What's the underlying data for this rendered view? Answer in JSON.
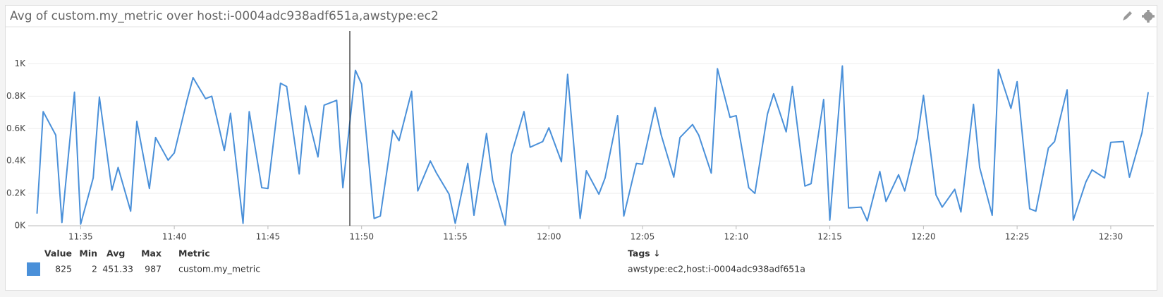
{
  "chart_data": {
    "type": "line",
    "title": "Avg of custom.my_metric over host:i-0004adc938adf651a,awstype:ec2",
    "x": [
      692.67,
      693,
      693.67,
      694,
      694.67,
      695,
      695.67,
      696,
      696.67,
      697,
      697.67,
      698,
      698.67,
      699,
      699.67,
      700,
      700.67,
      701,
      701.67,
      702,
      702.67,
      703,
      703.67,
      704,
      704.67,
      705,
      705.67,
      706,
      706.67,
      707,
      707.67,
      708,
      708.67,
      709,
      709.67,
      710,
      710.67,
      711,
      711.67,
      712,
      712.67,
      713,
      713.67,
      714,
      714.67,
      715,
      715.67,
      716,
      716.67,
      717,
      717.67,
      718,
      718.67,
      719,
      719.67,
      720,
      720.67,
      721,
      721.67,
      722,
      722.67,
      723,
      723.67,
      724,
      724.67,
      725,
      725.67,
      726,
      726.67,
      727,
      727.67,
      728,
      728.67,
      729,
      729.67,
      730,
      730.67,
      731,
      731.67,
      732,
      732.67,
      733,
      733.67,
      734,
      734.67,
      735,
      735.67,
      736,
      736.67,
      737,
      737.67,
      738,
      738.67,
      739,
      739.67,
      740,
      740.67,
      741,
      741.67,
      742,
      742.67,
      743,
      743.67,
      744,
      744.67,
      745,
      745.67,
      746,
      746.67,
      747,
      747.67,
      748,
      748.67,
      749,
      749.67,
      750,
      750.67,
      751,
      751.67,
      752
    ],
    "series": [
      {
        "name": "custom.my_metric",
        "color": "#4a90d9",
        "values": [
          75,
          705,
          560,
          20,
          825,
          10,
          295,
          795,
          220,
          360,
          90,
          645,
          230,
          545,
          405,
          450,
          770,
          915,
          785,
          800,
          465,
          695,
          15,
          705,
          235,
          230,
          880,
          860,
          320,
          740,
          425,
          745,
          775,
          235,
          960,
          875,
          45,
          60,
          590,
          525,
          830,
          215,
          400,
          325,
          195,
          15,
          385,
          65,
          570,
          280,
          5,
          440,
          705,
          485,
          520,
          605,
          395,
          935,
          45,
          340,
          195,
          295,
          680,
          60,
          385,
          380,
          730,
          560,
          300,
          545,
          625,
          560,
          325,
          970,
          670,
          680,
          235,
          200,
          690,
          815,
          580,
          860,
          245,
          260,
          780,
          35,
          987,
          110,
          115,
          30,
          335,
          150,
          315,
          215,
          535,
          805,
          190,
          115,
          225,
          85,
          750,
          360,
          65,
          965,
          725,
          890,
          105,
          90,
          480,
          520,
          840,
          35,
          270,
          345,
          295,
          515,
          520,
          300,
          575,
          825
        ]
      }
    ],
    "xlim": [
      692.2,
      752.3
    ],
    "xticks": [
      {
        "value": 695,
        "label": "11:35"
      },
      {
        "value": 700,
        "label": "11:40"
      },
      {
        "value": 705,
        "label": "11:45"
      },
      {
        "value": 710,
        "label": "11:50"
      },
      {
        "value": 715,
        "label": "11:55"
      },
      {
        "value": 720,
        "label": "12:00"
      },
      {
        "value": 725,
        "label": "12:05"
      },
      {
        "value": 730,
        "label": "12:10"
      },
      {
        "value": 735,
        "label": "12:15"
      },
      {
        "value": 740,
        "label": "12:20"
      },
      {
        "value": 745,
        "label": "12:25"
      },
      {
        "value": 750,
        "label": "12:30"
      }
    ],
    "ylim": [
      0,
      1200
    ],
    "yticks": [
      {
        "value": 0,
        "label": "0K"
      },
      {
        "value": 200,
        "label": "0.2K"
      },
      {
        "value": 400,
        "label": "0.4K"
      },
      {
        "value": 600,
        "label": "0.6K"
      },
      {
        "value": 800,
        "label": "0.8K"
      },
      {
        "value": 1000,
        "label": "1K"
      }
    ],
    "grid": true,
    "legend": {
      "headers": [
        "Value",
        "Min",
        "Avg",
        "Max",
        "Metric",
        "Tags ↓"
      ],
      "value": 825,
      "min": 2,
      "avg": 451.33,
      "max": 987,
      "tags": "awstype:ec2,host:i-0004adc938adf651a"
    }
  }
}
